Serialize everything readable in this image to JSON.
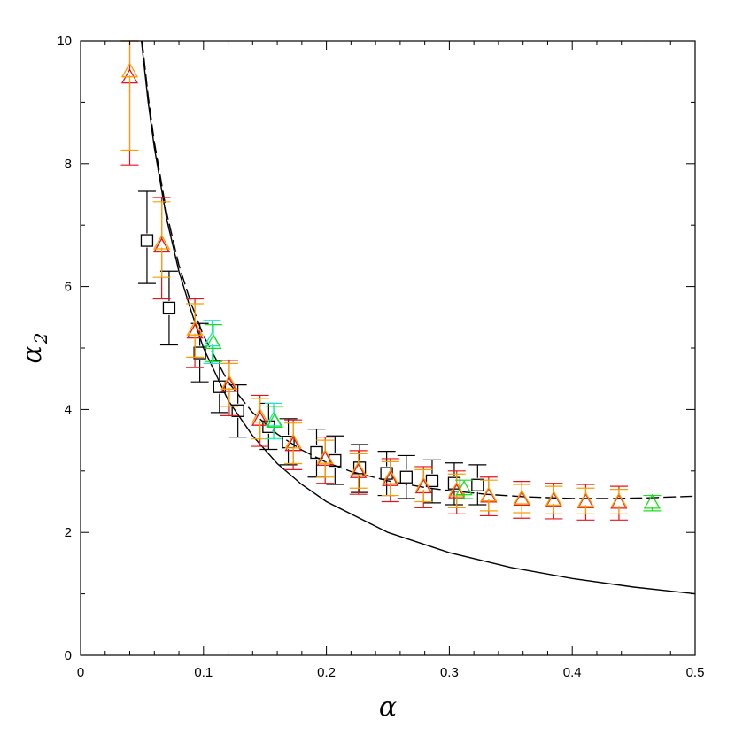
{
  "chart_data": {
    "type": "scatter",
    "xlabel": "α",
    "ylabel": "α",
    "ylabel_sub": "2",
    "xlim": [
      0,
      0.5
    ],
    "ylim": [
      0,
      10
    ],
    "xticks": [
      0,
      0.1,
      0.2,
      0.3,
      0.4,
      0.5
    ],
    "xtick_labels": [
      "0",
      "0.1",
      "0.2",
      "0.3",
      "0.4",
      "0.5"
    ],
    "yticks": [
      0,
      2,
      4,
      6,
      8,
      10
    ],
    "ytick_labels": [
      "0",
      "2",
      "4",
      "6",
      "8",
      "10"
    ],
    "grid": false,
    "colors": {
      "black": "#000000",
      "red": "#e8141c",
      "orange": "#f5a000",
      "green": "#18e018",
      "cyan": "#18e8c8",
      "darkorange": "#d06000"
    },
    "series": [
      {
        "marker": "square",
        "color": "#000000",
        "points": [
          {
            "x": 0.054,
            "y": 6.75,
            "lo": 6.05,
            "hi": 7.55
          },
          {
            "x": 0.072,
            "y": 5.65,
            "lo": 5.05,
            "hi": 6.25
          },
          {
            "x": 0.097,
            "y": 4.92,
            "lo": 4.45,
            "hi": 5.4
          },
          {
            "x": 0.113,
            "y": 4.37,
            "lo": 3.95,
            "hi": 4.8
          },
          {
            "x": 0.128,
            "y": 3.98,
            "lo": 3.55,
            "hi": 4.4
          },
          {
            "x": 0.153,
            "y": 3.72,
            "lo": 3.35,
            "hi": 4.1
          },
          {
            "x": 0.169,
            "y": 3.47,
            "lo": 3.1,
            "hi": 3.85
          },
          {
            "x": 0.192,
            "y": 3.3,
            "lo": 2.9,
            "hi": 3.68
          },
          {
            "x": 0.207,
            "y": 3.17,
            "lo": 2.78,
            "hi": 3.57
          },
          {
            "x": 0.227,
            "y": 3.05,
            "lo": 2.65,
            "hi": 3.43
          },
          {
            "x": 0.249,
            "y": 2.96,
            "lo": 2.6,
            "hi": 3.32
          },
          {
            "x": 0.265,
            "y": 2.9,
            "lo": 2.55,
            "hi": 3.25
          },
          {
            "x": 0.286,
            "y": 2.84,
            "lo": 2.48,
            "hi": 3.18
          },
          {
            "x": 0.304,
            "y": 2.8,
            "lo": 2.45,
            "hi": 3.13
          },
          {
            "x": 0.323,
            "y": 2.77,
            "lo": 2.45,
            "hi": 3.1
          }
        ]
      },
      {
        "marker": "triangle",
        "color": "#e8141c",
        "points": [
          {
            "x": 0.04,
            "y": 9.4,
            "lo": 7.98,
            "hi": 10.0
          },
          {
            "x": 0.066,
            "y": 6.65,
            "lo": 5.8,
            "hi": 7.45
          },
          {
            "x": 0.093,
            "y": 5.25,
            "lo": 4.68,
            "hi": 5.8
          },
          {
            "x": 0.121,
            "y": 4.38,
            "lo": 3.9,
            "hi": 4.8
          },
          {
            "x": 0.146,
            "y": 3.83,
            "lo": 3.4,
            "hi": 4.23
          },
          {
            "x": 0.173,
            "y": 3.42,
            "lo": 3.02,
            "hi": 3.83
          },
          {
            "x": 0.199,
            "y": 3.18,
            "lo": 2.8,
            "hi": 3.55
          },
          {
            "x": 0.226,
            "y": 2.98,
            "lo": 2.62,
            "hi": 3.33
          },
          {
            "x": 0.252,
            "y": 2.85,
            "lo": 2.5,
            "hi": 3.2
          },
          {
            "x": 0.279,
            "y": 2.73,
            "lo": 2.4,
            "hi": 3.07
          },
          {
            "x": 0.306,
            "y": 2.65,
            "lo": 2.3,
            "hi": 3.0
          },
          {
            "x": 0.332,
            "y": 2.58,
            "lo": 2.27,
            "hi": 2.9
          },
          {
            "x": 0.359,
            "y": 2.53,
            "lo": 2.23,
            "hi": 2.83
          },
          {
            "x": 0.385,
            "y": 2.51,
            "lo": 2.22,
            "hi": 2.8
          },
          {
            "x": 0.411,
            "y": 2.49,
            "lo": 2.2,
            "hi": 2.78
          },
          {
            "x": 0.438,
            "y": 2.48,
            "lo": 2.2,
            "hi": 2.75
          }
        ]
      },
      {
        "marker": "triangle",
        "color": "#f5a000",
        "points": [
          {
            "x": 0.04,
            "y": 9.5,
            "lo": 8.22,
            "hi": 10.0
          },
          {
            "x": 0.066,
            "y": 6.7,
            "lo": 6.15,
            "hi": 7.38
          },
          {
            "x": 0.093,
            "y": 5.3,
            "lo": 4.85,
            "hi": 5.72
          },
          {
            "x": 0.121,
            "y": 4.42,
            "lo": 4.05,
            "hi": 4.75
          },
          {
            "x": 0.146,
            "y": 3.88,
            "lo": 3.52,
            "hi": 4.18
          },
          {
            "x": 0.173,
            "y": 3.46,
            "lo": 3.12,
            "hi": 3.78
          },
          {
            "x": 0.199,
            "y": 3.21,
            "lo": 2.9,
            "hi": 3.5
          },
          {
            "x": 0.226,
            "y": 3.01,
            "lo": 2.72,
            "hi": 3.28
          },
          {
            "x": 0.252,
            "y": 2.88,
            "lo": 2.6,
            "hi": 3.15
          },
          {
            "x": 0.279,
            "y": 2.76,
            "lo": 2.5,
            "hi": 3.02
          },
          {
            "x": 0.306,
            "y": 2.68,
            "lo": 2.4,
            "hi": 2.95
          },
          {
            "x": 0.332,
            "y": 2.6,
            "lo": 2.35,
            "hi": 2.85
          },
          {
            "x": 0.359,
            "y": 2.55,
            "lo": 2.32,
            "hi": 2.78
          },
          {
            "x": 0.385,
            "y": 2.53,
            "lo": 2.3,
            "hi": 2.75
          },
          {
            "x": 0.411,
            "y": 2.51,
            "lo": 2.3,
            "hi": 2.72
          },
          {
            "x": 0.438,
            "y": 2.5,
            "lo": 2.3,
            "hi": 2.7
          }
        ]
      },
      {
        "marker": "triangle",
        "color": "#18e8c8",
        "points": [
          {
            "x": 0.107,
            "y": 5.12,
            "lo": 4.75,
            "hi": 5.45
          },
          {
            "x": 0.157,
            "y": 3.82,
            "lo": 3.52,
            "hi": 4.1
          }
        ]
      },
      {
        "marker": "triangle",
        "color": "#18e018",
        "points": [
          {
            "x": 0.108,
            "y": 5.08,
            "lo": 4.78,
            "hi": 5.38
          },
          {
            "x": 0.158,
            "y": 3.8,
            "lo": 3.55,
            "hi": 4.05
          },
          {
            "x": 0.312,
            "y": 2.7,
            "lo": 2.55,
            "hi": 2.85
          },
          {
            "x": 0.465,
            "y": 2.48,
            "lo": 2.35,
            "hi": 2.6
          }
        ]
      }
    ],
    "curves": [
      {
        "style": "solid",
        "color": "#000000",
        "points": [
          [
            0.0495,
            10.0
          ],
          [
            0.055,
            9.0
          ],
          [
            0.06,
            8.26
          ],
          [
            0.07,
            7.1
          ],
          [
            0.08,
            6.25
          ],
          [
            0.09,
            5.6
          ],
          [
            0.1,
            5.0
          ],
          [
            0.12,
            4.15
          ],
          [
            0.14,
            3.57
          ],
          [
            0.16,
            3.12
          ],
          [
            0.18,
            2.78
          ],
          [
            0.2,
            2.5
          ],
          [
            0.25,
            2.0
          ],
          [
            0.3,
            1.67
          ],
          [
            0.35,
            1.43
          ],
          [
            0.4,
            1.25
          ],
          [
            0.45,
            1.11
          ],
          [
            0.5,
            1.0
          ]
        ]
      },
      {
        "style": "dashed",
        "color": "#000000",
        "points": [
          [
            0.05,
            10.0
          ],
          [
            0.055,
            9.1
          ],
          [
            0.06,
            8.35
          ],
          [
            0.07,
            7.2
          ],
          [
            0.08,
            6.35
          ],
          [
            0.09,
            5.72
          ],
          [
            0.1,
            5.2
          ],
          [
            0.12,
            4.45
          ],
          [
            0.14,
            3.95
          ],
          [
            0.16,
            3.6
          ],
          [
            0.18,
            3.34
          ],
          [
            0.2,
            3.14
          ],
          [
            0.22,
            2.99
          ],
          [
            0.25,
            2.84
          ],
          [
            0.28,
            2.73
          ],
          [
            0.3,
            2.68
          ],
          [
            0.33,
            2.62
          ],
          [
            0.36,
            2.58
          ],
          [
            0.4,
            2.55
          ],
          [
            0.43,
            2.55
          ],
          [
            0.46,
            2.56
          ],
          [
            0.5,
            2.59
          ]
        ]
      }
    ]
  }
}
